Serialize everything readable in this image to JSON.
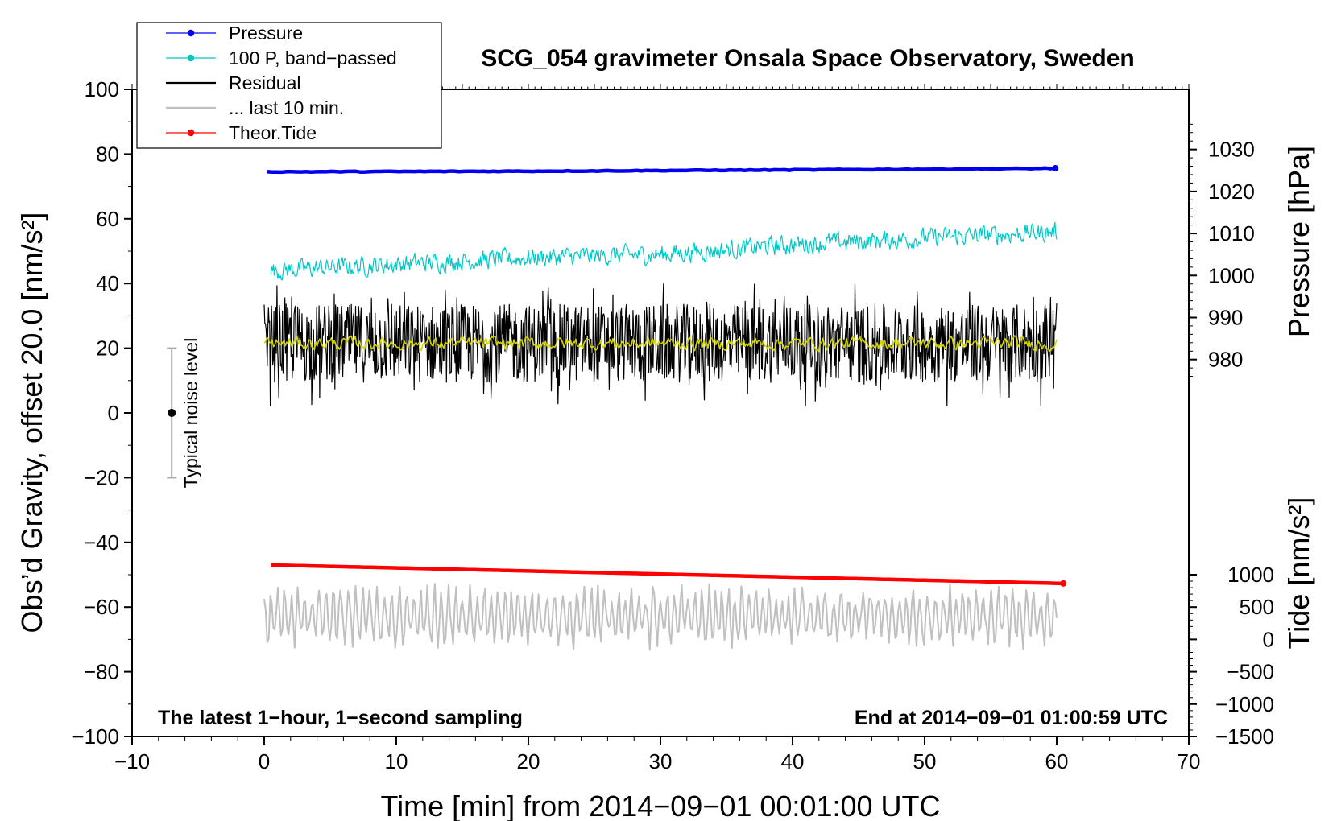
{
  "chart_data": {
    "type": "line",
    "title": "SCG_054 gravimeter Onsala Space Observatory, Sweden",
    "xlabel": "Time [min] from 2014−09−01 00:01:00 UTC",
    "ylabel_left": "Obs’d Gravity, offset 20.0 [nm/s²]",
    "ylabel_right_top": "Pressure [hPa]",
    "ylabel_right_bottom": "Tide [nm/s²]",
    "xlim": [
      -10,
      70
    ],
    "ylim": [
      -100,
      100
    ],
    "x_ticks": [
      -10,
      0,
      10,
      20,
      30,
      40,
      50,
      60,
      70
    ],
    "x_tick_labels": [
      "−10",
      "0",
      "10",
      "20",
      "30",
      "40",
      "50",
      "60",
      "70"
    ],
    "y_ticks": [
      -100,
      -80,
      -60,
      -40,
      -20,
      0,
      20,
      40,
      60,
      80,
      100
    ],
    "y_tick_labels": [
      "−100",
      "−80",
      "−60",
      "−40",
      "−20",
      "0",
      "20",
      "40",
      "60",
      "80",
      "100"
    ],
    "pressure_axis": {
      "ticks": [
        980,
        990,
        1000,
        1010,
        1020,
        1030
      ],
      "tick_labels": [
        "980",
        "990",
        "1000",
        "1010",
        "1020",
        "1030"
      ],
      "value_at_left_20": 982.7,
      "hpa_per_left_unit": 0.77
    },
    "tide_axis": {
      "ticks": [
        -1500,
        -1000,
        -500,
        0,
        500,
        1000
      ],
      "tick_labels": [
        "−1500",
        "−1000",
        "−500",
        "0",
        "500",
        "1000"
      ],
      "value_at_left_minus100": -1500,
      "nms2_per_left_unit": 50
    },
    "series": [
      {
        "name": "Pressure",
        "color": "#0000ee",
        "style": "line-dot",
        "x": [
          0.2,
          10,
          20,
          30,
          40,
          50,
          59.9
        ],
        "y": [
          74.5,
          74.6,
          74.7,
          74.9,
          75.1,
          75.3,
          75.6
        ]
      },
      {
        "name": "100 P, band−passed",
        "color": "#00c8c8",
        "style": "line-dot",
        "x": [
          0.5,
          10,
          20,
          30,
          40,
          50,
          60
        ],
        "y": [
          44,
          46,
          48,
          49,
          52,
          54,
          56
        ],
        "noise_amplitude": 3.5
      },
      {
        "name": "Residual",
        "color": "#000000",
        "style": "line",
        "x": [
          0,
          60
        ],
        "y": [
          21.5,
          21.5
        ],
        "noise_amplitude": 22
      },
      {
        "name": "... last 10 min.",
        "color": "#c0c0c0",
        "style": "line",
        "x": [
          0,
          60
        ],
        "y": [
          -63,
          -63
        ],
        "noise_amplitude": 12
      },
      {
        "name": "Theor.Tide",
        "color": "#ff0000",
        "style": "line-dot",
        "x": [
          0.5,
          60.5
        ],
        "y": [
          -47,
          -52.7
        ]
      },
      {
        "name": "smoothed residual",
        "color": "#d4d400",
        "style": "line",
        "in_legend": false,
        "x": [
          0,
          60
        ],
        "y": [
          21.5,
          21.5
        ],
        "noise_amplitude": 2
      }
    ],
    "noise_indicator": {
      "label": "Typical noise level",
      "x": -7,
      "center": 0,
      "low": -20,
      "high": 20
    },
    "annotations": {
      "bottom_left": "The latest 1−hour, 1−second sampling",
      "bottom_right": "End at 2014−09−01 01:00:59 UTC"
    },
    "legend_position": "top-left, outside plot frame"
  },
  "legend": {
    "items": [
      {
        "label": "Pressure",
        "color": "#0000ee",
        "marker": true
      },
      {
        "label": "100 P, band−passed",
        "color": "#00c8c8",
        "marker": true
      },
      {
        "label": "Residual",
        "color": "#000000",
        "marker": false
      },
      {
        "label": "... last 10 min.",
        "color": "#c0c0c0",
        "marker": false
      },
      {
        "label": "Theor.Tide",
        "color": "#ff0000",
        "marker": true
      }
    ]
  }
}
